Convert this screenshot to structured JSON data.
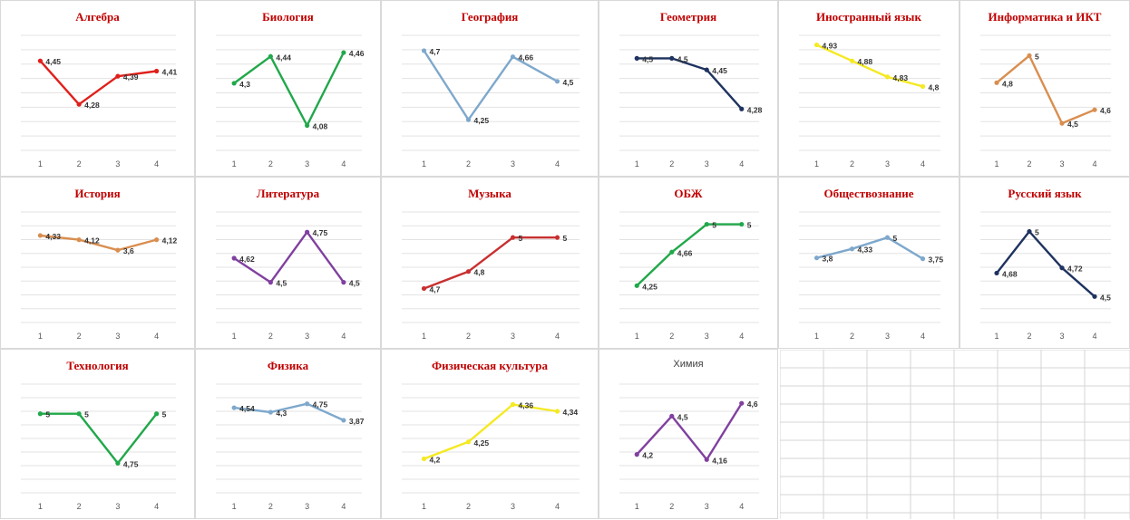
{
  "chart_data": [
    {
      "type": "line",
      "title": "Алгебра",
      "categories": [
        "1",
        "2",
        "3",
        "4"
      ],
      "values": [
        4.45,
        4.28,
        4.39,
        4.41
      ],
      "labels": [
        "4,45",
        "4,28",
        "4,39",
        "4,41"
      ],
      "color": "#e0201b",
      "ylim": [
        4.1,
        4.55
      ]
    },
    {
      "type": "line",
      "title": "Биология",
      "categories": [
        "1",
        "2",
        "3",
        "4"
      ],
      "values": [
        4.3,
        4.44,
        4.08,
        4.46
      ],
      "labels": [
        "4,3",
        "4,44",
        "4,08",
        "4,46"
      ],
      "color": "#21a84a",
      "ylim": [
        3.95,
        4.55
      ]
    },
    {
      "type": "line",
      "title": "География",
      "categories": [
        "1",
        "2",
        "3",
        "4"
      ],
      "values": [
        4.7,
        4.25,
        4.66,
        4.5
      ],
      "labels": [
        "4,7",
        "4,25",
        "4,66",
        "4,5"
      ],
      "color": "#7ea8cc",
      "ylim": [
        4.05,
        4.8
      ]
    },
    {
      "type": "line",
      "title": "Геометрия",
      "categories": [
        "1",
        "2",
        "3",
        "4"
      ],
      "values": [
        4.5,
        4.5,
        4.45,
        4.28
      ],
      "labels": [
        "4,5",
        "4,5",
        "4,45",
        "4,28"
      ],
      "color": "#1f3360",
      "ylim": [
        4.1,
        4.6
      ]
    },
    {
      "type": "line",
      "title": "Иностранный язык",
      "categories": [
        "1",
        "2",
        "3",
        "4"
      ],
      "values": [
        4.93,
        4.88,
        4.83,
        4.8
      ],
      "labels": [
        "4,93",
        "4,88",
        "4,83",
        "4,8"
      ],
      "color": "#f5e922",
      "ylim": [
        4.6,
        4.96
      ]
    },
    {
      "type": "line",
      "title": "Информатика и ИКТ",
      "categories": [
        "1",
        "2",
        "3",
        "4"
      ],
      "values": [
        4.8,
        5,
        4.5,
        4.6
      ],
      "labels": [
        "4,8",
        "5",
        "4,5",
        "4,6"
      ],
      "color": "#d98e4f",
      "ylim": [
        4.3,
        5.15
      ]
    },
    {
      "type": "line",
      "title": "История",
      "categories": [
        "1",
        "2",
        "3",
        "4"
      ],
      "values": [
        4.33,
        4.12,
        3.6,
        4.12
      ],
      "labels": [
        "4,33",
        "4,12",
        "3,6",
        "4,12"
      ],
      "color": "#d98e4f",
      "ylim": [
        0,
        5.5
      ]
    },
    {
      "type": "line",
      "title": "Литература",
      "categories": [
        "1",
        "2",
        "3",
        "4"
      ],
      "values": [
        4.62,
        4.5,
        4.75,
        4.5
      ],
      "labels": [
        "4,62",
        "4,5",
        "4,75",
        "4,5"
      ],
      "color": "#8040a0",
      "ylim": [
        4.3,
        4.85
      ]
    },
    {
      "type": "line",
      "title": "Музыка",
      "categories": [
        "1",
        "2",
        "3",
        "4"
      ],
      "values": [
        4.7,
        4.8,
        5,
        5
      ],
      "labels": [
        "4,7",
        "4,8",
        "5",
        "5"
      ],
      "color": "#c83030",
      "ylim": [
        4.5,
        5.15
      ]
    },
    {
      "type": "line",
      "title": "ОБЖ",
      "categories": [
        "1",
        "2",
        "3",
        "4"
      ],
      "values": [
        4.25,
        4.66,
        5,
        5
      ],
      "labels": [
        "4,25",
        "4,66",
        "5",
        "5"
      ],
      "color": "#21a84a",
      "ylim": [
        3.8,
        5.15
      ]
    },
    {
      "type": "line",
      "title": "Обществознание",
      "categories": [
        "1",
        "2",
        "3",
        "4"
      ],
      "values": [
        3.8,
        4.33,
        5,
        3.75
      ],
      "labels": [
        "3,8",
        "4,33",
        "5",
        "3,75"
      ],
      "color": "#7ea8cc",
      "ylim": [
        0,
        6.5
      ]
    },
    {
      "type": "line",
      "title": "Русский язык",
      "categories": [
        "1",
        "2",
        "3",
        "4"
      ],
      "values": [
        4.68,
        5,
        4.72,
        4.5
      ],
      "labels": [
        "4,68",
        "5",
        "4,72",
        "4,5"
      ],
      "color": "#1f3360",
      "ylim": [
        4.3,
        5.15
      ]
    },
    {
      "type": "line",
      "title": "Технология",
      "categories": [
        "1",
        "2",
        "3",
        "4"
      ],
      "values": [
        5,
        5,
        4.75,
        5
      ],
      "labels": [
        "5",
        "5",
        "4,75",
        "5"
      ],
      "color": "#21a84a",
      "ylim": [
        4.6,
        5.15
      ]
    },
    {
      "type": "line",
      "title": "Физика",
      "categories": [
        "1",
        "2",
        "3",
        "4"
      ],
      "values": [
        4.54,
        4.3,
        4.75,
        3.87
      ],
      "labels": [
        "4,54",
        "4,3",
        "4,75",
        "3,87"
      ],
      "color": "#7ea8cc",
      "ylim": [
        0,
        5.8
      ]
    },
    {
      "type": "line",
      "title": "Физическая культура",
      "categories": [
        "1",
        "2",
        "3",
        "4"
      ],
      "values": [
        4.2,
        4.25,
        4.36,
        4.34
      ],
      "labels": [
        "4,2",
        "4,25",
        "4,36",
        "4,34"
      ],
      "color": "#f5e922",
      "ylim": [
        4.1,
        4.42
      ]
    },
    {
      "type": "line",
      "title": "Химия",
      "categories": [
        "1",
        "2",
        "3",
        "4"
      ],
      "values": [
        4.2,
        4.5,
        4.16,
        4.6
      ],
      "labels": [
        "4,2",
        "4,5",
        "4,16",
        "4,6"
      ],
      "color": "#8040a0",
      "ylim": [
        3.9,
        4.75
      ]
    }
  ]
}
